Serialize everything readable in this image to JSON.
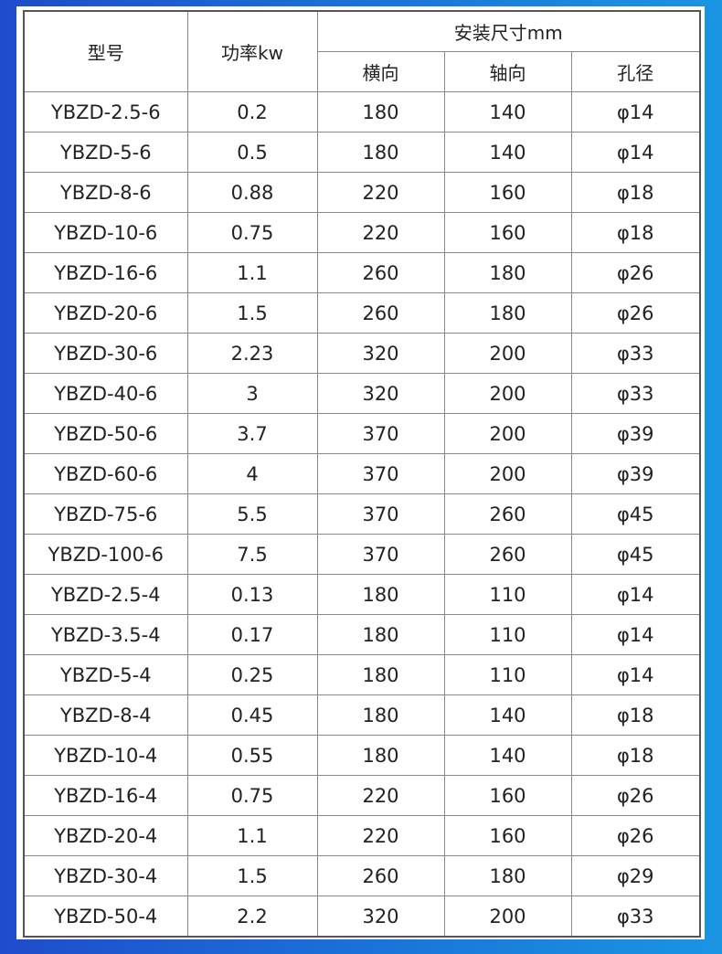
{
  "headers": {
    "model": "型号",
    "power": "功率kw",
    "install": "安装尺寸mm",
    "lateral": "横向",
    "axial": "轴向",
    "hole": "孔径"
  },
  "rows": [
    [
      "YBZD-2.5-6",
      "0.2",
      "180",
      "140",
      "φ14"
    ],
    [
      "YBZD-5-6",
      "0.5",
      "180",
      "140",
      "φ14"
    ],
    [
      "YBZD-8-6",
      "0.88",
      "220",
      "160",
      "φ18"
    ],
    [
      "YBZD-10-6",
      "0.75",
      "220",
      "160",
      "φ18"
    ],
    [
      "YBZD-16-6",
      "1.1",
      "260",
      "180",
      "φ26"
    ],
    [
      "YBZD-20-6",
      "1.5",
      "260",
      "180",
      "φ26"
    ],
    [
      "YBZD-30-6",
      "2.23",
      "320",
      "200",
      "φ33"
    ],
    [
      "YBZD-40-6",
      "3",
      "320",
      "200",
      "φ33"
    ],
    [
      "YBZD-50-6",
      "3.7",
      "370",
      "200",
      "φ39"
    ],
    [
      "YBZD-60-6",
      "4",
      "370",
      "200",
      "φ39"
    ],
    [
      "YBZD-75-6",
      "5.5",
      "370",
      "260",
      "φ45"
    ],
    [
      "YBZD-100-6",
      "7.5",
      "370",
      "260",
      "φ45"
    ],
    [
      "YBZD-2.5-4",
      "0.13",
      "180",
      "110",
      "φ14"
    ],
    [
      "YBZD-3.5-4",
      "0.17",
      "180",
      "110",
      "φ14"
    ],
    [
      "YBZD-5-4",
      "0.25",
      "180",
      "110",
      "φ14"
    ],
    [
      "YBZD-8-4",
      "0.45",
      "180",
      "140",
      "φ18"
    ],
    [
      "YBZD-10-4",
      "0.55",
      "180",
      "140",
      "φ18"
    ],
    [
      "YBZD-16-4",
      "0.75",
      "220",
      "160",
      "φ26"
    ],
    [
      "YBZD-20-4",
      "1.1",
      "220",
      "160",
      "φ26"
    ],
    [
      "YBZD-30-4",
      "1.5",
      "260",
      "180",
      "φ29"
    ],
    [
      "YBZD-50-4",
      "2.2",
      "320",
      "200",
      "φ33"
    ]
  ]
}
